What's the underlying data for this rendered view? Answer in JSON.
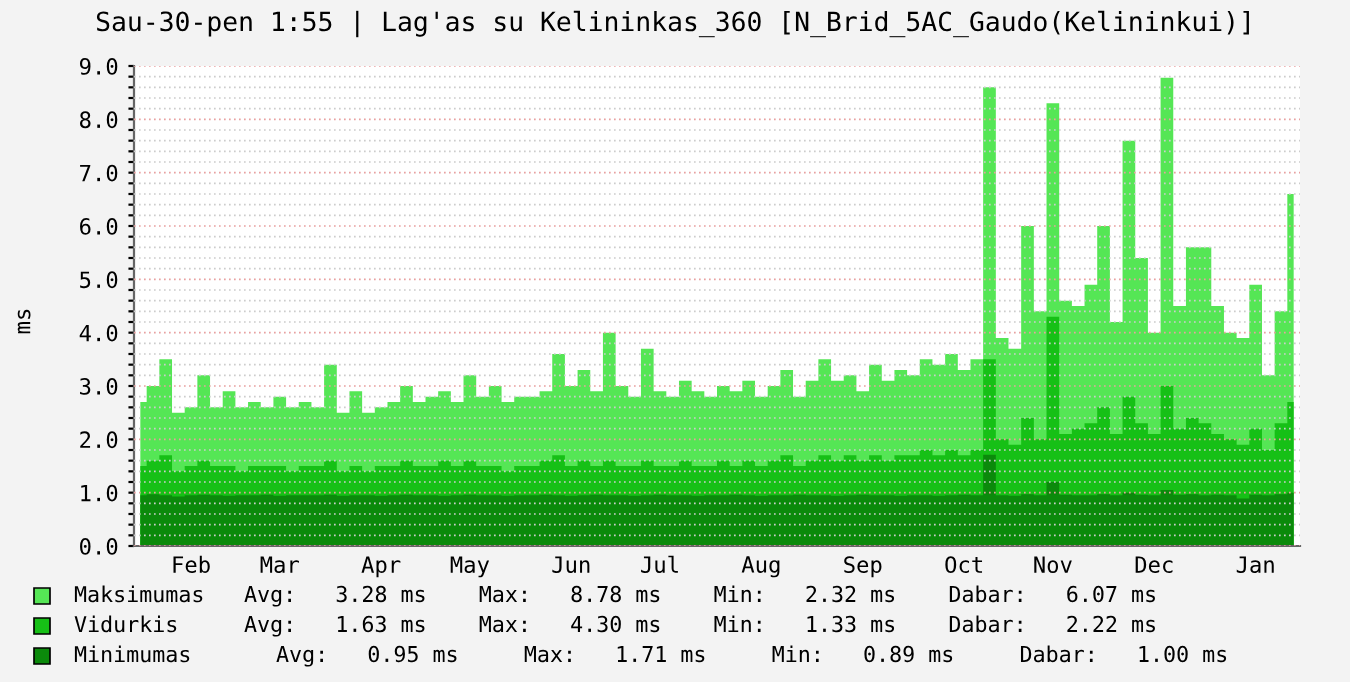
{
  "chart_data": {
    "type": "area",
    "title": "Sau-30-pen 1:55 | Lag'as su Kelininkas_360 [N_Brid_5AC_Gaudo(Kelininkui)]",
    "ylabel": "ms",
    "categories": [
      null,
      null,
      null,
      null,
      "Feb",
      null,
      null,
      null,
      null,
      null,
      null,
      "Mar",
      null,
      null,
      null,
      null,
      null,
      null,
      null,
      "Apr",
      null,
      null,
      null,
      null,
      null,
      null,
      "May",
      null,
      null,
      null,
      null,
      null,
      null,
      null,
      "Jun",
      null,
      null,
      null,
      null,
      null,
      null,
      "Jul",
      null,
      null,
      null,
      null,
      null,
      null,
      null,
      "Aug",
      null,
      null,
      null,
      null,
      null,
      null,
      null,
      "Sep",
      null,
      null,
      null,
      null,
      null,
      null,
      null,
      "Oct",
      null,
      null,
      null,
      null,
      null,
      null,
      "Nov",
      null,
      null,
      null,
      null,
      null,
      null,
      null,
      "Dec",
      null,
      null,
      null,
      null,
      null,
      null,
      null,
      "Jan",
      null,
      null,
      null
    ],
    "series": [
      {
        "name": "Maksimumas",
        "color": "#55e655",
        "values": [
          2.7,
          3.0,
          3.5,
          2.5,
          2.6,
          3.2,
          2.6,
          2.9,
          2.6,
          2.7,
          2.6,
          2.8,
          2.6,
          2.7,
          2.6,
          3.4,
          2.5,
          2.9,
          2.5,
          2.6,
          2.7,
          3.0,
          2.7,
          2.8,
          2.9,
          2.7,
          3.2,
          2.8,
          3.0,
          2.7,
          2.8,
          2.8,
          2.9,
          3.6,
          3.0,
          3.3,
          2.9,
          4.0,
          3.0,
          2.8,
          3.7,
          2.9,
          2.8,
          3.1,
          2.9,
          2.8,
          3.0,
          2.9,
          3.1,
          2.8,
          3.0,
          3.3,
          2.8,
          3.1,
          3.5,
          3.1,
          3.2,
          2.9,
          3.4,
          3.1,
          3.3,
          3.2,
          3.5,
          3.4,
          3.6,
          3.3,
          3.5,
          8.6,
          3.9,
          3.7,
          6.0,
          4.4,
          8.3,
          4.6,
          4.5,
          4.9,
          6.0,
          4.2,
          7.6,
          5.4,
          4.0,
          8.78,
          4.5,
          5.6,
          5.6,
          4.5,
          4.0,
          3.9,
          4.9,
          3.2,
          4.4,
          6.6
        ]
      },
      {
        "name": "Vidurkis",
        "color": "#16c016",
        "values": [
          1.5,
          1.6,
          1.7,
          1.4,
          1.5,
          1.6,
          1.5,
          1.5,
          1.4,
          1.5,
          1.5,
          1.5,
          1.4,
          1.5,
          1.5,
          1.6,
          1.4,
          1.5,
          1.4,
          1.5,
          1.5,
          1.6,
          1.5,
          1.5,
          1.6,
          1.5,
          1.6,
          1.5,
          1.5,
          1.4,
          1.5,
          1.5,
          1.6,
          1.7,
          1.5,
          1.6,
          1.5,
          1.6,
          1.5,
          1.5,
          1.6,
          1.5,
          1.5,
          1.6,
          1.5,
          1.5,
          1.6,
          1.5,
          1.6,
          1.5,
          1.6,
          1.7,
          1.5,
          1.6,
          1.7,
          1.6,
          1.7,
          1.6,
          1.7,
          1.6,
          1.7,
          1.7,
          1.8,
          1.7,
          1.8,
          1.7,
          1.8,
          3.5,
          2.0,
          1.9,
          2.4,
          2.0,
          4.3,
          2.1,
          2.2,
          2.3,
          2.6,
          2.1,
          2.8,
          2.3,
          2.1,
          3.0,
          2.2,
          2.4,
          2.3,
          2.1,
          2.0,
          1.9,
          2.2,
          1.8,
          2.3,
          2.7
        ]
      },
      {
        "name": "Minimumas",
        "color": "#0b8a0b",
        "values": [
          0.95,
          0.97,
          0.95,
          0.93,
          0.95,
          0.96,
          0.95,
          0.94,
          0.95,
          0.95,
          0.96,
          0.94,
          0.95,
          0.95,
          0.95,
          0.96,
          0.94,
          0.95,
          0.95,
          0.94,
          0.95,
          0.96,
          0.95,
          0.95,
          0.94,
          0.95,
          0.96,
          0.95,
          0.95,
          0.94,
          0.95,
          0.95,
          0.96,
          0.95,
          0.94,
          0.95,
          0.96,
          0.95,
          0.95,
          0.94,
          0.95,
          0.96,
          0.95,
          0.95,
          0.94,
          0.95,
          0.95,
          0.96,
          0.95,
          0.94,
          0.95,
          0.95,
          0.96,
          0.95,
          0.95,
          0.94,
          0.95,
          0.96,
          0.95,
          0.95,
          0.94,
          0.95,
          0.95,
          0.94,
          0.95,
          0.96,
          0.95,
          1.71,
          0.95,
          0.94,
          0.97,
          0.95,
          1.2,
          0.96,
          0.95,
          0.95,
          0.97,
          0.95,
          1.0,
          0.96,
          0.95,
          1.05,
          0.96,
          0.97,
          0.95,
          0.96,
          0.95,
          0.89,
          0.96,
          0.95,
          0.97,
          1.0
        ]
      }
    ],
    "annotations": [
      "Avg:   3.28 ms    Max:   8.78 ms    Min:   2.32 ms    Dabar:   6.07 ms",
      "Avg:   1.63 ms    Max:   4.30 ms    Min:   1.33 ms    Dabar:   2.22 ms",
      "Avg:   0.95 ms     Max:   1.71 ms     Min:   0.89 ms     Dabar:   1.00 ms"
    ],
    "ylim": [
      0,
      9
    ],
    "yticks": [
      {
        "value": 0,
        "label": "0.0"
      },
      {
        "value": 0.2,
        "label": null
      },
      {
        "value": 0.4,
        "label": null
      },
      {
        "value": 0.6,
        "label": null
      },
      {
        "value": 0.8,
        "label": null
      },
      {
        "value": 1,
        "label": "1.0"
      },
      {
        "value": 1.2,
        "label": null
      },
      {
        "value": 1.4,
        "label": null
      },
      {
        "value": 1.6,
        "label": null
      },
      {
        "value": 1.8,
        "label": null
      },
      {
        "value": 2,
        "label": "2.0"
      },
      {
        "value": 2.2,
        "label": null
      },
      {
        "value": 2.4,
        "label": null
      },
      {
        "value": 2.6,
        "label": null
      },
      {
        "value": 2.8,
        "label": null
      },
      {
        "value": 3,
        "label": "3.0"
      },
      {
        "value": 3.2,
        "label": null
      },
      {
        "value": 3.4,
        "label": null
      },
      {
        "value": 3.6,
        "label": null
      },
      {
        "value": 3.8,
        "label": null
      },
      {
        "value": 4,
        "label": "4.0"
      },
      {
        "value": 4.2,
        "label": null
      },
      {
        "value": 4.4,
        "label": null
      },
      {
        "value": 4.6,
        "label": null
      },
      {
        "value": 4.8,
        "label": null
      },
      {
        "value": 5,
        "label": "5.0"
      },
      {
        "value": 5.2,
        "label": null
      },
      {
        "value": 5.4,
        "label": null
      },
      {
        "value": 5.6,
        "label": null
      },
      {
        "value": 5.8,
        "label": null
      },
      {
        "value": 6,
        "label": "6.0"
      },
      {
        "value": 6.2,
        "label": null
      },
      {
        "value": 6.4,
        "label": null
      },
      {
        "value": 6.6,
        "label": null
      },
      {
        "value": 6.8,
        "label": null
      },
      {
        "value": 7,
        "label": "7.0"
      },
      {
        "value": 7.2,
        "label": null
      },
      {
        "value": 7.4,
        "label": null
      },
      {
        "value": 7.6,
        "label": null
      },
      {
        "value": 7.8,
        "label": null
      },
      {
        "value": 8,
        "label": "8.0"
      },
      {
        "value": 8.2,
        "label": null
      },
      {
        "value": 8.4,
        "label": null
      },
      {
        "value": 8.6,
        "label": null
      },
      {
        "value": 8.8,
        "label": null
      },
      {
        "value": 9,
        "label": "9.0"
      }
    ],
    "grid": "y",
    "legend": "bottom"
  }
}
